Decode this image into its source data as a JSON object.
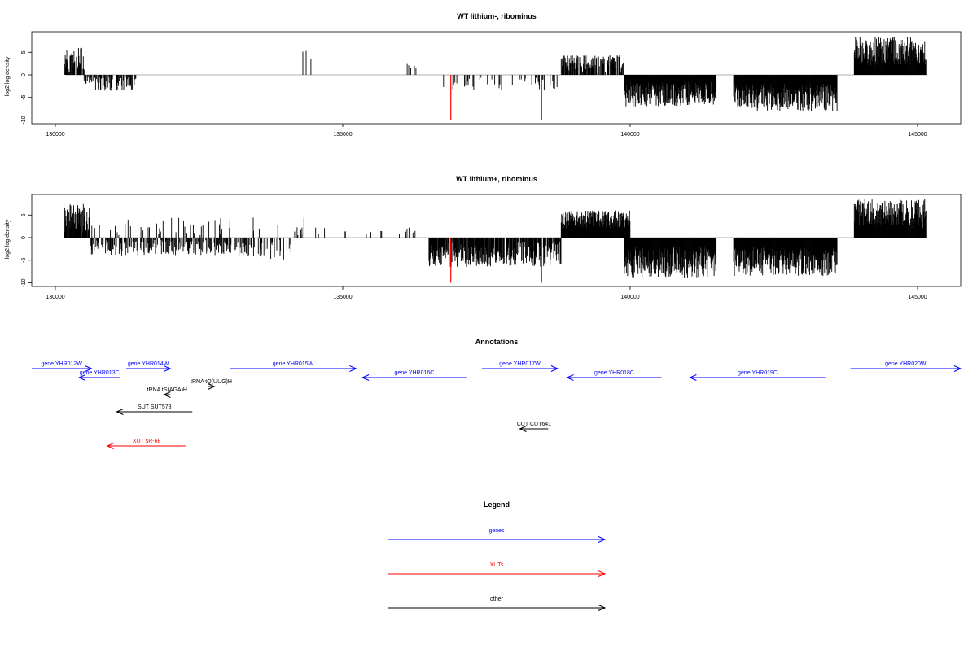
{
  "chart_data": [
    {
      "type": "bar",
      "title": "WT lithium-, ribominus",
      "ylabel": "log2 log density",
      "xlim": [
        129600,
        145800
      ],
      "ylim": [
        -10,
        10
      ],
      "x_ticks": [
        "130000",
        "135000",
        "140000",
        "145000"
      ],
      "y_ticks": [
        "-10",
        "-5",
        "0",
        "5"
      ],
      "regions": [
        {
          "start": 130150,
          "end": 130500,
          "min": 0.5,
          "max": 6,
          "sign": 1,
          "density": 0.7
        },
        {
          "start": 130500,
          "end": 130700,
          "min": 0.3,
          "max": 2,
          "sign": -1,
          "density": 0.5
        },
        {
          "start": 130700,
          "end": 131400,
          "min": 0.5,
          "max": 3.5,
          "sign": -1,
          "density": 0.5
        },
        {
          "start": 134250,
          "end": 134450,
          "min": 2,
          "max": 5.5,
          "sign": 1,
          "density": 0.08
        },
        {
          "start": 136050,
          "end": 136300,
          "min": 1,
          "max": 2.5,
          "sign": 1,
          "density": 0.15
        },
        {
          "start": 136600,
          "end": 138800,
          "min": 0.5,
          "max": 3.5,
          "sign": -1,
          "density": 0.12
        },
        {
          "start": 138800,
          "end": 139900,
          "min": 0.5,
          "max": 4.5,
          "sign": 1,
          "density": 0.7
        },
        {
          "start": 139900,
          "end": 141500,
          "min": 1.5,
          "max": 7,
          "sign": -1,
          "density": 1
        },
        {
          "start": 141800,
          "end": 143600,
          "min": 2,
          "max": 8,
          "sign": -1,
          "density": 1
        },
        {
          "start": 143900,
          "end": 145150,
          "min": 2,
          "max": 8.5,
          "sign": 1,
          "density": 1
        }
      ],
      "highlights": [
        {
          "x": 136880,
          "y": -10,
          "color": "#ff0000"
        },
        {
          "x": 138460,
          "y": -10,
          "color": "#ff0000"
        }
      ]
    },
    {
      "type": "bar",
      "title": "WT lithium+, ribominus",
      "ylabel": "log2 log density",
      "xlim": [
        129600,
        145800
      ],
      "ylim": [
        -10,
        10
      ],
      "x_ticks": [
        "130000",
        "135000",
        "140000",
        "145000"
      ],
      "y_ticks": [
        "-10",
        "-5",
        "0",
        "5"
      ],
      "regions": [
        {
          "start": 130150,
          "end": 130600,
          "min": 1,
          "max": 7.5,
          "sign": 1,
          "density": 0.9
        },
        {
          "start": 130600,
          "end": 133300,
          "min": 0.5,
          "max": 4,
          "sign": -1,
          "density": 0.5
        },
        {
          "start": 130600,
          "end": 134400,
          "min": 0.5,
          "max": 4.5,
          "sign": 1,
          "density": 0.08
        },
        {
          "start": 133300,
          "end": 134100,
          "min": 0.5,
          "max": 5,
          "sign": -1,
          "density": 0.3
        },
        {
          "start": 134200,
          "end": 136500,
          "min": 0.5,
          "max": 2.5,
          "sign": 1,
          "density": 0.06
        },
        {
          "start": 136500,
          "end": 138800,
          "min": 1,
          "max": 6.5,
          "sign": -1,
          "density": 0.8
        },
        {
          "start": 138800,
          "end": 140000,
          "min": 2,
          "max": 6,
          "sign": 1,
          "density": 1
        },
        {
          "start": 139900,
          "end": 141500,
          "min": 2,
          "max": 9,
          "sign": -1,
          "density": 1
        },
        {
          "start": 141800,
          "end": 143600,
          "min": 2,
          "max": 8.5,
          "sign": -1,
          "density": 1
        },
        {
          "start": 143900,
          "end": 145150,
          "min": 2,
          "max": 8.5,
          "sign": 1,
          "density": 1
        }
      ],
      "highlights": [
        {
          "x": 136880,
          "y": -10,
          "color": "#ff0000"
        },
        {
          "x": 138460,
          "y": -10,
          "color": "#ff0000"
        }
      ]
    }
  ],
  "annotations": {
    "title": "Annotations",
    "items": [
      {
        "label": "gene YHR012W",
        "start": 129500,
        "end": 131400,
        "dir": "right",
        "row": 0,
        "color": "#0000ff"
      },
      {
        "label": "gene YHR013C",
        "start": 131000,
        "end": 132300,
        "dir": "left",
        "row": 1,
        "color": "#0000ff"
      },
      {
        "label": "gene YHR014W",
        "start": 132500,
        "end": 133900,
        "dir": "right",
        "row": 0,
        "color": "#0000ff"
      },
      {
        "label": "gene YHR015W",
        "start": 135800,
        "end": 139800,
        "dir": "right",
        "row": 0,
        "color": "#0000ff"
      },
      {
        "label": "gene YHR016C",
        "start": 140000,
        "end": 143300,
        "dir": "left",
        "row": 1,
        "color": "#0000ff"
      },
      {
        "label": "gene YHR017W",
        "start": 143800,
        "end": 146200,
        "dir": "right",
        "row": 0,
        "color": "#0000ff"
      },
      {
        "label": "gene YHR018C",
        "start": 146500,
        "end": 149500,
        "dir": "left",
        "row": 1,
        "color": "#0000ff"
      },
      {
        "label": "gene YHR019C",
        "start": 150400,
        "end": 154700,
        "dir": "left",
        "row": 1,
        "color": "#0000ff"
      },
      {
        "label": "gene YHR020W",
        "start": 155500,
        "end": 159000,
        "dir": "right",
        "row": 0,
        "color": "#0000ff"
      },
      {
        "label": "tRNA tS(AGA)H",
        "start": 133700,
        "end": 133900,
        "dir": "left",
        "row": 2,
        "color": "#000000"
      },
      {
        "label": "tRNA tQ(UUG)H",
        "start": 135100,
        "end": 135300,
        "dir": "right",
        "row": 3,
        "color": "#000000"
      },
      {
        "label": "SUT SUT578",
        "start": 132200,
        "end": 134600,
        "dir": "left",
        "row": 4,
        "color": "#000000"
      },
      {
        "label": "CUT CUT641",
        "start": 145000,
        "end": 145900,
        "dir": "left",
        "row": 5,
        "color": "#000000"
      },
      {
        "label": "XUT sR-68",
        "start": 131900,
        "end": 134400,
        "dir": "left",
        "row": 6,
        "color": "#ff0000"
      }
    ]
  },
  "legend": {
    "title": "Legend",
    "items": [
      {
        "label": "genes",
        "color": "#0000ff"
      },
      {
        "label": "XUTs",
        "color": "#ff0000"
      },
      {
        "label": "other",
        "color": "#000000"
      }
    ]
  }
}
